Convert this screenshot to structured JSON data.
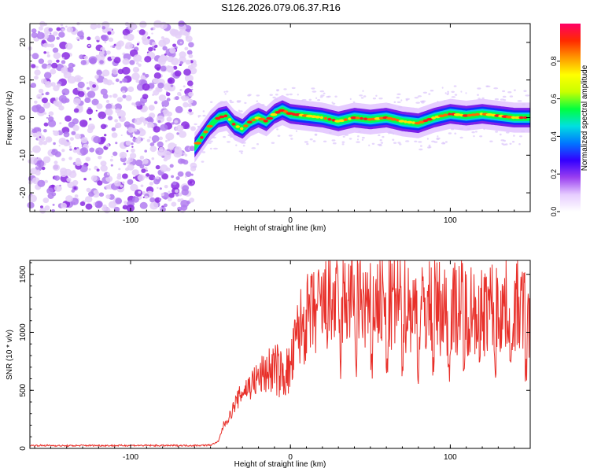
{
  "figure": {
    "title": "S126.2026.079.06.37.R16"
  },
  "colorbar": {
    "label": "Normalized spectral amplitude",
    "ticks": [
      0.0,
      0.2,
      0.4,
      0.6,
      0.8
    ],
    "tick_labels": [
      "0.0",
      "0.2",
      "0.4",
      "0.6",
      "0.8"
    ],
    "range": [
      0,
      1
    ],
    "colors": [
      "#ffffff",
      "#e6ccff",
      "#9a3ff0",
      "#3300ff",
      "#0077ff",
      "#00e0e0",
      "#00ff40",
      "#c8ff00",
      "#ffff00",
      "#ff9900",
      "#ff2a00",
      "#ff0066"
    ]
  },
  "chart_data": [
    {
      "type": "heatmap",
      "title": "S126.2026.079.06.37.R16",
      "xlabel": "Height of straight line (km)",
      "ylabel": "Frequency (Hz)",
      "xlim": [
        -163,
        150
      ],
      "ylim": [
        -25,
        25
      ],
      "xticks": [
        -100,
        0,
        100
      ],
      "xtick_labels": [
        "-100",
        "0",
        "100"
      ],
      "yticks": [
        -20,
        -10,
        0,
        10,
        20
      ],
      "ytick_labels": [
        "-20",
        "-10",
        "0",
        "10",
        "20"
      ],
      "noise_region_x": [
        -163,
        -60
      ],
      "ridge": {
        "description_points_x": [
          -60,
          -55,
          -50,
          -45,
          -40,
          -35,
          -30,
          -25,
          -20,
          -15,
          -10,
          -5,
          0,
          10,
          20,
          30,
          40,
          50,
          60,
          70,
          80,
          90,
          100,
          110,
          120,
          130,
          140,
          150
        ],
        "frequency_hz": [
          -8,
          -5,
          -2,
          0,
          0.5,
          -2,
          -3,
          -1,
          0,
          -1,
          1,
          2,
          1,
          0.5,
          0,
          -1,
          0,
          -0.5,
          0,
          -1,
          -1.5,
          0,
          1,
          0.5,
          1,
          0.5,
          0,
          0
        ]
      }
    },
    {
      "type": "line",
      "xlabel": "Height of straight line (km)",
      "ylabel": "SNR (10 * v/v)",
      "xlim": [
        -163,
        150
      ],
      "ylim": [
        0,
        1620
      ],
      "xticks": [
        -100,
        0,
        100
      ],
      "xtick_labels": [
        "-100",
        "0",
        "100"
      ],
      "yticks": [
        0,
        500,
        1000,
        1500
      ],
      "ytick_labels": [
        "0",
        "500",
        "1000",
        "1500"
      ],
      "series": [
        {
          "name": "SNR",
          "color": "#e8302a",
          "x": [
            -163,
            -150,
            -140,
            -130,
            -120,
            -110,
            -100,
            -90,
            -80,
            -70,
            -60,
            -50,
            -45,
            -42,
            -38,
            -35,
            -30,
            -25,
            -20,
            -15,
            -10,
            -5,
            0,
            5,
            10,
            15,
            20,
            25,
            30,
            35,
            40,
            45,
            50,
            55,
            60,
            65,
            70,
            75,
            80,
            85,
            90,
            95,
            100,
            105,
            110,
            115,
            120,
            125,
            130,
            135,
            140,
            145,
            150
          ],
          "values": [
            25,
            25,
            22,
            25,
            25,
            24,
            26,
            25,
            24,
            25,
            25,
            28,
            60,
            200,
            280,
            380,
            500,
            560,
            620,
            680,
            720,
            650,
            700,
            1050,
            1150,
            1200,
            1250,
            1300,
            1280,
            1320,
            1350,
            1300,
            1250,
            1300,
            1250,
            1280,
            1300,
            1260,
            1200,
            1250,
            1280,
            1250,
            1220,
            1280,
            1250,
            1270,
            1230,
            1260,
            1240,
            1280,
            1250,
            1230,
            1200
          ]
        }
      ]
    }
  ]
}
